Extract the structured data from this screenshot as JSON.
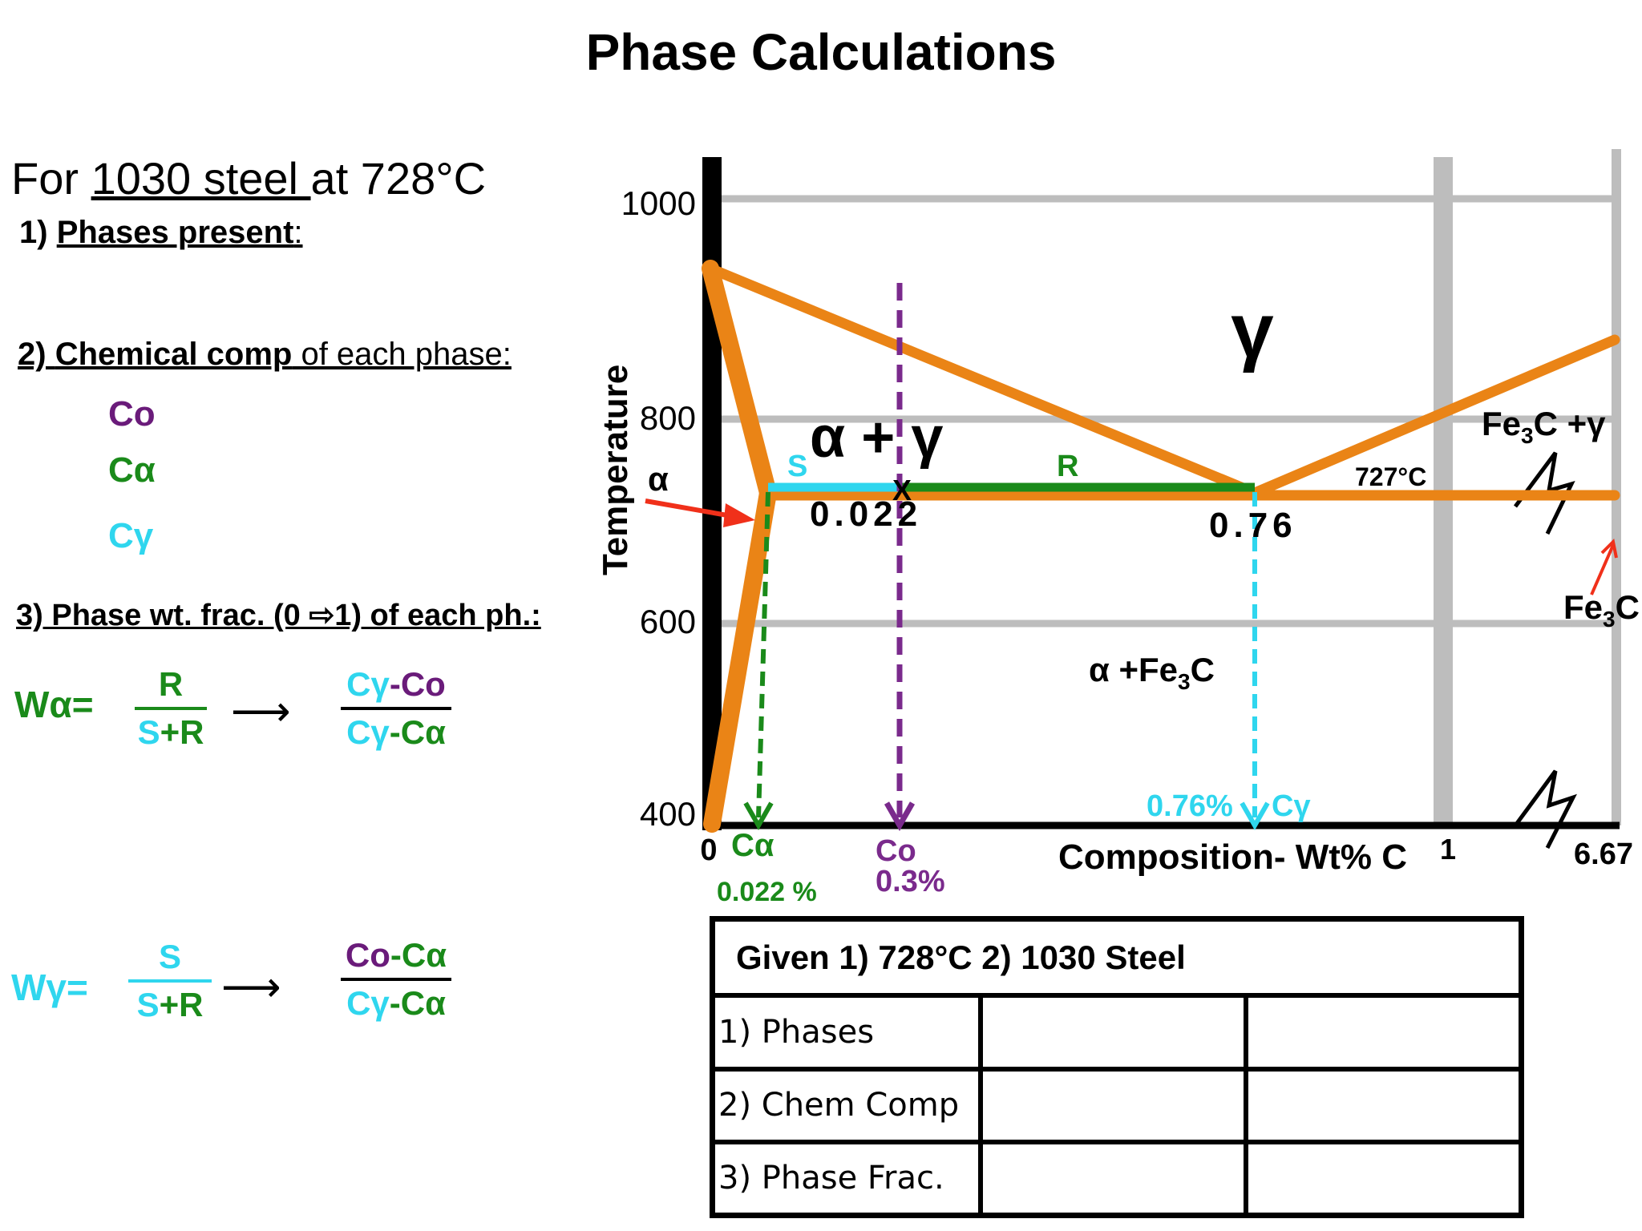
{
  "title": "Phase Calculations",
  "intro": {
    "prefix": "For ",
    "steel": "1030 steel ",
    "suffix": "at 728°C"
  },
  "questions": {
    "q1_num": "1) ",
    "q1_label": "Phases present",
    "q1_colon": ":",
    "q2_num": "2) ",
    "q2_label": "Chemical comp",
    "q2_rest": " of each phase:",
    "q3_text": "3) Phase wt. frac. (0 ⇨1) of each ph.:"
  },
  "symbols": {
    "co": "Co",
    "ca": "Cα",
    "cg": "Cγ"
  },
  "formulas": {
    "wa_label": "Wα=",
    "wa_num": "R",
    "wa_den_s": "S",
    "wa_den_r": "+R",
    "wa_rhs_num_a": "Cγ",
    "wa_rhs_num_b": "-Co",
    "wa_rhs_den_a": "Cγ",
    "wa_rhs_den_b": "-Cα",
    "wg_label": "Wγ=",
    "wg_num": "S",
    "wg_den_s": "S",
    "wg_den_r": "+R",
    "wg_rhs_num_a": "Co",
    "wg_rhs_num_b": "-Cα",
    "wg_rhs_den_a": "Cγ",
    "wg_rhs_den_b": "-Cα",
    "arrow": "⟶"
  },
  "diagram": {
    "y_axis_label": "Temperature",
    "y_ticks": [
      "1000",
      "800",
      "600",
      "400"
    ],
    "x_axis_label": "Composition- Wt% C",
    "x_ticks": [
      "0",
      "1",
      "6.67"
    ],
    "regions": {
      "gamma": "γ",
      "alpha_gamma": "α + γ",
      "alpha": "α",
      "alpha_fe3c_a": "α  +Fe",
      "alpha_fe3c_sub": "3",
      "alpha_fe3c_c": "C",
      "fe3c_gamma_a": "Fe",
      "fe3c_gamma_sub": "3",
      "fe3c_gamma_c": "C +γ",
      "fe3c_a": "Fe",
      "fe3c_sub": "3",
      "fe3c_c": "C"
    },
    "labels": {
      "s": "S",
      "r": "R",
      "x_mark": "X",
      "val_0022": "0.022",
      "val_076": "0.76",
      "eutectoid_temp": "727°C",
      "ca_axis": "Cα",
      "ca_value": "0.022 %",
      "co_axis": "Co",
      "co_value": "0.3%",
      "cg_value": "0.76%",
      "cg_axis": "Cγ"
    },
    "colors": {
      "phase_lines": "#ea8416",
      "grid": "#bdbdbd",
      "tie_alpha": "#2fd6ee",
      "tie_gamma": "#1a8a1a",
      "co_line": "#7a2a8c",
      "arrow": "#f0301a"
    }
  },
  "table": {
    "header": "Given 1) 728°C  2) 1030 Steel",
    "rows": [
      "1) Phases",
      "2) Chem Comp",
      "3) Phase Frac."
    ]
  }
}
